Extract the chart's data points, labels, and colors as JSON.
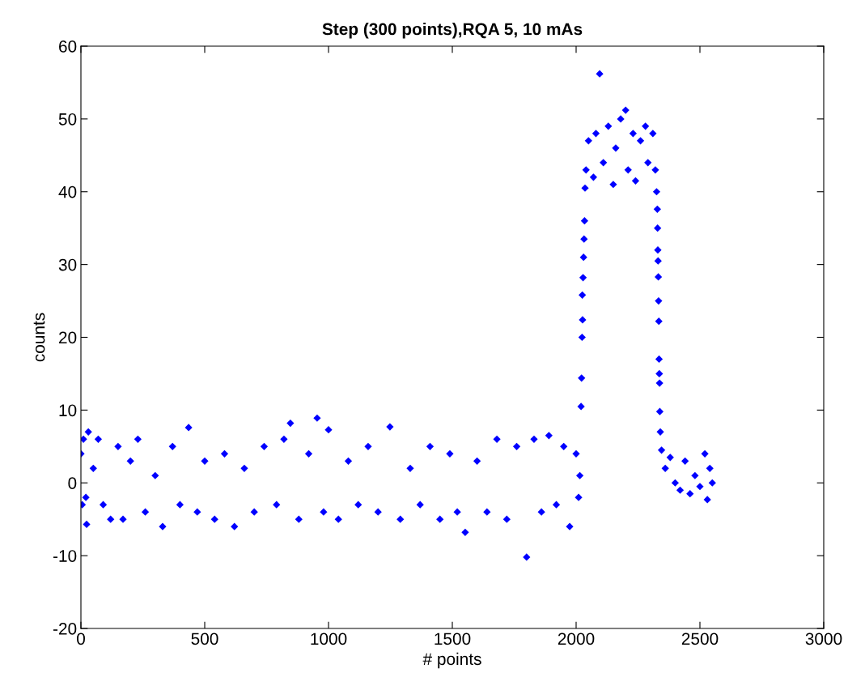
{
  "chart_data": {
    "type": "scatter",
    "title": "Step (300 points),RQA 5, 10 mAs",
    "xlabel": "# points",
    "ylabel": "counts",
    "xlim": [
      0,
      3000
    ],
    "xticks": [
      0,
      500,
      1000,
      1500,
      2000,
      2500,
      3000
    ],
    "ylim": [
      -20,
      60
    ],
    "yticks": [
      -20,
      -10,
      0,
      10,
      20,
      30,
      40,
      50,
      60
    ],
    "grid": false,
    "legend": false,
    "marker": "diamond",
    "series": [
      {
        "color": "#0000ff",
        "x": [
          0,
          5,
          10,
          20,
          23,
          30,
          50,
          70,
          90,
          120,
          150,
          170,
          200,
          230,
          260,
          300,
          330,
          370,
          400,
          435,
          470,
          500,
          540,
          580,
          620,
          660,
          700,
          740,
          790,
          820,
          846,
          880,
          920,
          954,
          980,
          1000,
          1040,
          1080,
          1120,
          1160,
          1200,
          1248,
          1290,
          1330,
          1370,
          1410,
          1450,
          1490,
          1520,
          1552,
          1600,
          1640,
          1680,
          1720,
          1760,
          1800,
          1830,
          1860,
          1890,
          1920,
          1950,
          1974,
          2000,
          2010,
          2015,
          2020,
          2022,
          2024,
          2026,
          2025,
          2028,
          2030,
          2032,
          2034,
          2036,
          2040,
          2050,
          2070,
          2080,
          2095,
          2110,
          2130,
          2150,
          2160,
          2180,
          2200,
          2210,
          2230,
          2240,
          2260,
          2280,
          2290,
          2310,
          2320,
          2325,
          2328,
          2329,
          2330,
          2331,
          2332,
          2333,
          2334,
          2335,
          2336,
          2337,
          2338,
          2340,
          2345,
          2360,
          2380,
          2400,
          2420,
          2440,
          2460,
          2480,
          2500,
          2520,
          2530,
          2540,
          2550
        ],
        "values": [
          4,
          -3,
          6,
          -2,
          -5.7,
          7,
          2,
          6,
          -3,
          -5,
          5,
          -5,
          3,
          6,
          -4,
          1,
          -6,
          5,
          -3,
          7.6,
          -4,
          3,
          -5,
          4,
          -6,
          2,
          -4,
          5,
          -3,
          6,
          8.2,
          -5,
          4,
          8.9,
          -4,
          7.3,
          -5,
          3,
          -3,
          5,
          -4,
          7.7,
          -5,
          2,
          -3,
          5,
          -5,
          4,
          -4,
          -6.8,
          3,
          -4,
          6,
          -5,
          5,
          -10.2,
          6,
          -4,
          6.5,
          -3,
          5,
          -6,
          4,
          -2,
          1,
          10.5,
          14.4,
          20,
          22.4,
          25.8,
          28.2,
          31,
          33.5,
          36,
          40.5,
          43,
          47,
          42,
          48,
          56.2,
          44,
          49,
          41,
          46,
          50,
          51.2,
          43,
          48,
          41.5,
          47,
          49,
          44,
          48,
          43,
          40,
          37.6,
          35,
          32,
          30.5,
          28.3,
          25,
          22.2,
          17,
          15,
          13.7,
          9.8,
          7,
          4.5,
          2,
          3.5,
          0,
          -1,
          3,
          -1.5,
          1,
          -0.5,
          4,
          -2.3,
          2,
          0
        ]
      }
    ]
  }
}
